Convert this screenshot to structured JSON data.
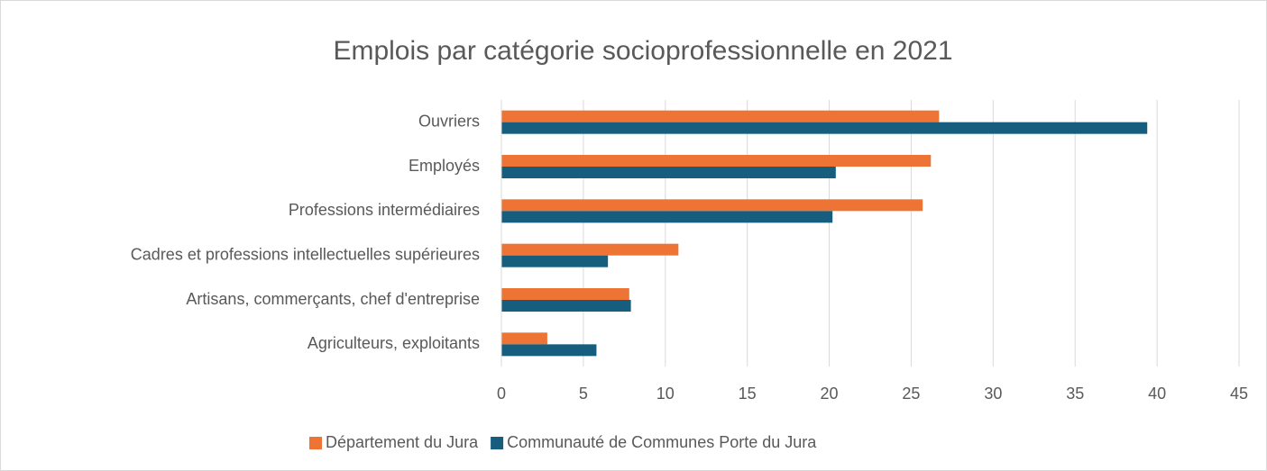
{
  "chart_data": {
    "type": "hbar",
    "title": "Emplois par catégorie socioprofessionnelle en 2021",
    "categories": [
      "Ouvriers",
      "Employés",
      "Professions intermédiaires",
      "Cadres et professions intellectuelles supérieures",
      "Artisans, commerçants, chef d'entreprise",
      "Agriculteurs, exploitants"
    ],
    "series": [
      {
        "name": "Département du Jura",
        "color": "#ed7434",
        "values": [
          26.7,
          26.2,
          25.7,
          10.8,
          7.8,
          2.8
        ]
      },
      {
        "name": "Communauté de Communes Porte du Jura",
        "color": "#175e7e",
        "values": [
          39.4,
          20.4,
          20.2,
          6.5,
          7.9,
          5.8
        ]
      }
    ],
    "xlim": [
      0,
      45
    ],
    "xticks": [
      0,
      5,
      10,
      15,
      20,
      25,
      30,
      35,
      40,
      45
    ],
    "grid": true,
    "legend": "bottom"
  }
}
